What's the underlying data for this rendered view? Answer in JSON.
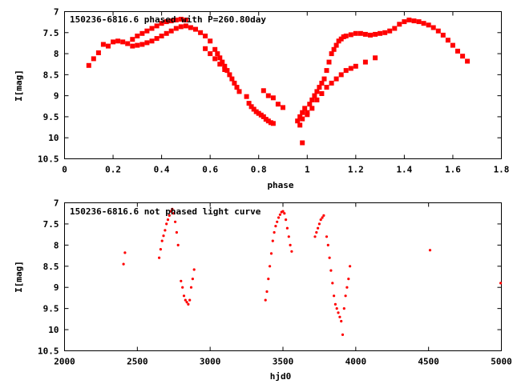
{
  "chart_data": [
    {
      "type": "scatter",
      "title": "150236-6816.6 phased with P=260.80day",
      "xlabel": "phase",
      "ylabel": "I[mag]",
      "xlim": [
        0,
        1.8
      ],
      "ylim": [
        7,
        10.5
      ],
      "y_inverted": true,
      "xticks": [
        "0",
        "0.2",
        "0.4",
        "0.6",
        "0.8",
        "1",
        "1.2",
        "1.4",
        "1.6",
        "1.8"
      ],
      "yticks": [
        "7",
        "7.5",
        "8",
        "8.5",
        "9",
        "9.5",
        "10",
        "10.5"
      ],
      "color": "#ff0000",
      "marker": "square",
      "x": [
        0.1,
        0.12,
        0.14,
        0.16,
        0.18,
        0.2,
        0.22,
        0.24,
        0.26,
        0.28,
        0.3,
        0.32,
        0.34,
        0.36,
        0.38,
        0.4,
        0.42,
        0.44,
        0.46,
        0.48,
        0.5,
        0.28,
        0.3,
        0.32,
        0.34,
        0.36,
        0.38,
        0.4,
        0.42,
        0.44,
        0.46,
        0.48,
        0.5,
        0.52,
        0.54,
        0.56,
        0.58,
        0.6,
        0.62,
        0.63,
        0.64,
        0.65,
        0.66,
        0.67,
        0.68,
        0.69,
        0.7,
        0.71,
        0.72,
        0.58,
        0.6,
        0.62,
        0.64,
        0.66,
        0.75,
        0.76,
        0.77,
        0.78,
        0.79,
        0.8,
        0.81,
        0.82,
        0.83,
        0.84,
        0.85,
        0.86,
        0.82,
        0.84,
        0.86,
        0.88,
        0.9,
        0.96,
        0.97,
        0.98,
        0.99,
        1.0,
        1.01,
        1.02,
        1.03,
        1.04,
        1.05,
        1.06,
        1.07,
        1.08,
        1.09,
        1.1,
        1.11,
        1.12,
        1.13,
        1.14,
        1.15,
        1.16,
        1.18,
        1.2,
        1.22,
        1.24,
        1.26,
        1.28,
        1.3,
        1.32,
        1.34,
        1.36,
        1.38,
        1.4,
        1.42,
        1.44,
        1.46,
        1.48,
        1.5,
        1.52,
        1.54,
        1.56,
        1.58,
        1.6,
        1.62,
        1.64,
        1.66,
        0.97,
        0.98,
        1.0,
        1.02,
        1.04,
        1.06,
        1.08,
        1.1,
        1.12,
        1.14,
        1.16,
        1.18,
        1.2,
        1.24,
        1.28,
        0.98
      ],
      "y": [
        8.28,
        8.12,
        7.98,
        7.78,
        7.82,
        7.72,
        7.7,
        7.72,
        7.76,
        7.66,
        7.58,
        7.52,
        7.46,
        7.4,
        7.34,
        7.28,
        7.24,
        7.22,
        7.2,
        7.18,
        7.2,
        7.82,
        7.8,
        7.78,
        7.74,
        7.7,
        7.64,
        7.58,
        7.52,
        7.46,
        7.4,
        7.36,
        7.34,
        7.38,
        7.42,
        7.5,
        7.58,
        7.7,
        7.9,
        8.0,
        8.1,
        8.2,
        8.3,
        8.4,
        8.5,
        8.6,
        8.7,
        8.8,
        8.9,
        7.88,
        8.0,
        8.12,
        8.25,
        8.38,
        9.02,
        9.18,
        9.26,
        9.32,
        9.38,
        9.42,
        9.46,
        9.5,
        9.56,
        9.6,
        9.64,
        9.66,
        8.88,
        9.0,
        9.05,
        9.2,
        9.28,
        9.6,
        9.5,
        9.4,
        9.3,
        9.45,
        9.2,
        9.1,
        9.0,
        8.9,
        8.8,
        8.7,
        8.6,
        8.4,
        8.2,
        8.0,
        7.9,
        7.8,
        7.7,
        7.65,
        7.6,
        7.58,
        7.55,
        7.52,
        7.52,
        7.54,
        7.56,
        7.54,
        7.52,
        7.5,
        7.46,
        7.4,
        7.3,
        7.24,
        7.2,
        7.22,
        7.24,
        7.28,
        7.32,
        7.38,
        7.46,
        7.56,
        7.68,
        7.8,
        7.94,
        8.06,
        8.18,
        9.7,
        9.55,
        9.4,
        9.3,
        9.1,
        8.95,
        8.8,
        8.7,
        8.6,
        8.5,
        8.4,
        8.35,
        8.3,
        8.2,
        8.1,
        10.12
      ]
    },
    {
      "type": "scatter",
      "title": "150236-6816.6 not phased light curve",
      "xlabel": "hjd0",
      "ylabel": "I[mag]",
      "xlim": [
        2000,
        5000
      ],
      "ylim": [
        7,
        10.5
      ],
      "y_inverted": true,
      "xticks": [
        "2000",
        "2500",
        "3000",
        "3500",
        "4000",
        "4500",
        "5000"
      ],
      "yticks": [
        "7",
        "7.5",
        "8",
        "8.5",
        "9",
        "9.5",
        "10",
        "10.5"
      ],
      "color": "#ff0000",
      "marker": "dot",
      "x": [
        2405,
        2415,
        2650,
        2660,
        2670,
        2680,
        2690,
        2700,
        2710,
        2720,
        2730,
        2740,
        2750,
        2760,
        2770,
        2780,
        2800,
        2810,
        2820,
        2830,
        2840,
        2850,
        2860,
        2870,
        2880,
        2890,
        3380,
        3390,
        3400,
        3410,
        3420,
        3430,
        3440,
        3450,
        3460,
        3470,
        3480,
        3490,
        3500,
        3510,
        3520,
        3530,
        3540,
        3550,
        3560,
        3720,
        3730,
        3740,
        3750,
        3760,
        3770,
        3780,
        3800,
        3810,
        3820,
        3830,
        3840,
        3850,
        3860,
        3870,
        3880,
        3890,
        3900,
        3910,
        3920,
        3930,
        3940,
        3950,
        3960,
        4510,
        4995
      ],
      "y": [
        8.45,
        8.18,
        8.3,
        8.1,
        7.9,
        7.78,
        7.65,
        7.5,
        7.4,
        7.3,
        7.2,
        7.15,
        7.25,
        7.45,
        7.7,
        8.0,
        8.85,
        9.0,
        9.2,
        9.3,
        9.35,
        9.4,
        9.3,
        9.0,
        8.8,
        8.58,
        9.3,
        9.1,
        8.8,
        8.5,
        8.2,
        7.9,
        7.7,
        7.55,
        7.45,
        7.35,
        7.28,
        7.22,
        7.2,
        7.25,
        7.4,
        7.6,
        7.8,
        8.0,
        8.15,
        7.8,
        7.7,
        7.6,
        7.5,
        7.4,
        7.35,
        7.3,
        7.8,
        8.0,
        8.3,
        8.6,
        8.9,
        9.2,
        9.4,
        9.5,
        9.6,
        9.7,
        9.8,
        10.12,
        9.5,
        9.2,
        9.0,
        8.8,
        8.5,
        8.12,
        8.9
      ]
    }
  ]
}
